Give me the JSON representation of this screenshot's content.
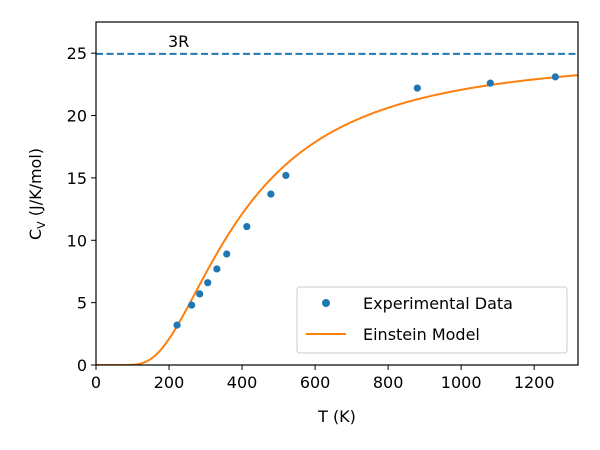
{
  "chart_data": {
    "type": "scatter",
    "title": "",
    "xlabel": "T (K)",
    "ylabel_main": "C",
    "ylabel_sub": "V",
    "ylabel_rest": " (J/K/mol)",
    "xlim": [
      0,
      1320
    ],
    "ylim": [
      0,
      27.5
    ],
    "x_ticks": [
      0,
      200,
      400,
      600,
      800,
      1000,
      1200
    ],
    "y_ticks": [
      0,
      5,
      10,
      15,
      20,
      25
    ],
    "grid": false,
    "legend_position": "lower-right",
    "reference_line": {
      "label": "3R",
      "y": 24.94,
      "color": "#1f77b4",
      "style": "dashed"
    },
    "series": [
      {
        "name": "Experimental Data",
        "kind": "points",
        "color": "#1f77b4",
        "x": [
          222,
          262,
          284,
          306,
          331,
          358,
          413,
          479,
          520,
          880,
          1080,
          1258
        ],
        "y": [
          3.2,
          4.8,
          5.7,
          6.6,
          7.7,
          8.9,
          11.1,
          13.7,
          15.2,
          22.2,
          22.6,
          23.1
        ]
      },
      {
        "name": "Einstein Model",
        "kind": "line",
        "color": "#ff7f0e",
        "einstein_temperature": 1220,
        "x_range": [
          0,
          1320
        ]
      }
    ]
  }
}
